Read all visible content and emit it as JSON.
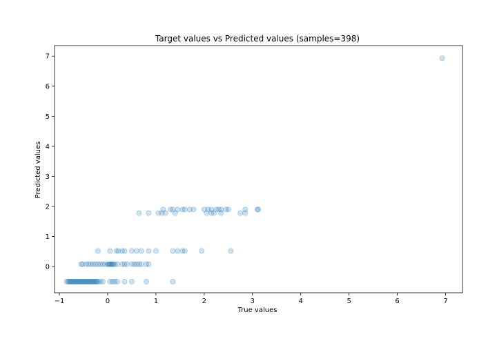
{
  "chart_data": {
    "type": "scatter",
    "title": "Target values vs Predicted values (samples=398)",
    "xlabel": "True values",
    "ylabel": "Predicted values",
    "xlim": [
      -1.1,
      7.35
    ],
    "ylim": [
      -0.87,
      7.35
    ],
    "xticks": [
      -1,
      0,
      1,
      2,
      3,
      4,
      5,
      6,
      7
    ],
    "yticks": [
      0,
      1,
      2,
      3,
      4,
      5,
      6,
      7
    ],
    "grid": false,
    "color": "#1f77b4",
    "alpha": 0.22,
    "series": [
      {
        "name": "",
        "points": [
          [
            -0.85,
            -0.5
          ],
          [
            -0.82,
            -0.5
          ],
          [
            -0.8,
            -0.5
          ],
          [
            -0.78,
            -0.5
          ],
          [
            -0.76,
            -0.5
          ],
          [
            -0.74,
            -0.5
          ],
          [
            -0.72,
            -0.5
          ],
          [
            -0.7,
            -0.5
          ],
          [
            -0.68,
            -0.5
          ],
          [
            -0.66,
            -0.5
          ],
          [
            -0.64,
            -0.5
          ],
          [
            -0.62,
            -0.5
          ],
          [
            -0.6,
            -0.5
          ],
          [
            -0.58,
            -0.5
          ],
          [
            -0.56,
            -0.5
          ],
          [
            -0.54,
            -0.5
          ],
          [
            -0.52,
            -0.5
          ],
          [
            -0.5,
            -0.5
          ],
          [
            -0.48,
            -0.5
          ],
          [
            -0.46,
            -0.5
          ],
          [
            -0.44,
            -0.5
          ],
          [
            -0.42,
            -0.5
          ],
          [
            -0.4,
            -0.5
          ],
          [
            -0.38,
            -0.5
          ],
          [
            -0.36,
            -0.5
          ],
          [
            -0.34,
            -0.5
          ],
          [
            -0.32,
            -0.5
          ],
          [
            -0.3,
            -0.5
          ],
          [
            -0.28,
            -0.5
          ],
          [
            -0.26,
            -0.5
          ],
          [
            -0.24,
            -0.5
          ],
          [
            -0.22,
            -0.5
          ],
          [
            -0.2,
            -0.5
          ],
          [
            -0.15,
            -0.5
          ],
          [
            -0.1,
            -0.5
          ],
          [
            0.05,
            -0.5
          ],
          [
            0.1,
            -0.5
          ],
          [
            0.15,
            -0.5
          ],
          [
            0.2,
            -0.5
          ],
          [
            0.35,
            -0.5
          ],
          [
            0.5,
            -0.5
          ],
          [
            0.8,
            -0.5
          ],
          [
            1.35,
            -0.5
          ],
          [
            -0.55,
            0.08
          ],
          [
            -0.52,
            0.08
          ],
          [
            -0.45,
            0.08
          ],
          [
            -0.4,
            0.08
          ],
          [
            -0.35,
            0.08
          ],
          [
            -0.3,
            0.08
          ],
          [
            -0.25,
            0.08
          ],
          [
            -0.2,
            0.08
          ],
          [
            -0.15,
            0.08
          ],
          [
            -0.1,
            0.08
          ],
          [
            -0.05,
            0.08
          ],
          [
            0.0,
            0.08
          ],
          [
            0.02,
            0.08
          ],
          [
            0.04,
            0.08
          ],
          [
            0.06,
            0.08
          ],
          [
            0.08,
            0.08
          ],
          [
            0.1,
            0.08
          ],
          [
            0.12,
            0.08
          ],
          [
            0.15,
            0.08
          ],
          [
            0.2,
            0.08
          ],
          [
            0.3,
            0.08
          ],
          [
            0.35,
            0.08
          ],
          [
            0.4,
            0.08
          ],
          [
            0.5,
            0.08
          ],
          [
            0.55,
            0.08
          ],
          [
            0.6,
            0.08
          ],
          [
            0.65,
            0.08
          ],
          [
            0.7,
            0.08
          ],
          [
            0.8,
            0.08
          ],
          [
            0.85,
            0.08
          ],
          [
            -0.2,
            0.52
          ],
          [
            0.05,
            0.52
          ],
          [
            0.18,
            0.52
          ],
          [
            0.22,
            0.52
          ],
          [
            0.3,
            0.52
          ],
          [
            0.35,
            0.52
          ],
          [
            0.5,
            0.52
          ],
          [
            0.6,
            0.52
          ],
          [
            0.7,
            0.52
          ],
          [
            0.85,
            0.52
          ],
          [
            1.0,
            0.52
          ],
          [
            1.35,
            0.52
          ],
          [
            1.45,
            0.52
          ],
          [
            1.55,
            0.52
          ],
          [
            1.6,
            0.52
          ],
          [
            1.95,
            0.52
          ],
          [
            2.55,
            0.52
          ],
          [
            0.65,
            1.78
          ],
          [
            0.85,
            1.78
          ],
          [
            1.05,
            1.78
          ],
          [
            1.12,
            1.78
          ],
          [
            1.2,
            1.78
          ],
          [
            1.4,
            1.78
          ],
          [
            2.05,
            1.78
          ],
          [
            2.15,
            1.78
          ],
          [
            2.2,
            1.78
          ],
          [
            2.35,
            1.78
          ],
          [
            2.75,
            1.78
          ],
          [
            2.85,
            1.78
          ],
          [
            1.15,
            1.9
          ],
          [
            1.3,
            1.9
          ],
          [
            1.35,
            1.9
          ],
          [
            1.45,
            1.9
          ],
          [
            1.55,
            1.9
          ],
          [
            1.6,
            1.9
          ],
          [
            1.7,
            1.9
          ],
          [
            1.78,
            1.9
          ],
          [
            2.0,
            1.9
          ],
          [
            2.08,
            1.9
          ],
          [
            2.15,
            1.9
          ],
          [
            2.25,
            1.9
          ],
          [
            2.3,
            1.9
          ],
          [
            2.35,
            1.9
          ],
          [
            2.45,
            1.9
          ],
          [
            2.5,
            1.9
          ],
          [
            2.85,
            1.9
          ],
          [
            3.1,
            1.9
          ],
          [
            3.12,
            1.9
          ],
          [
            6.93,
            6.93
          ]
        ]
      }
    ]
  }
}
